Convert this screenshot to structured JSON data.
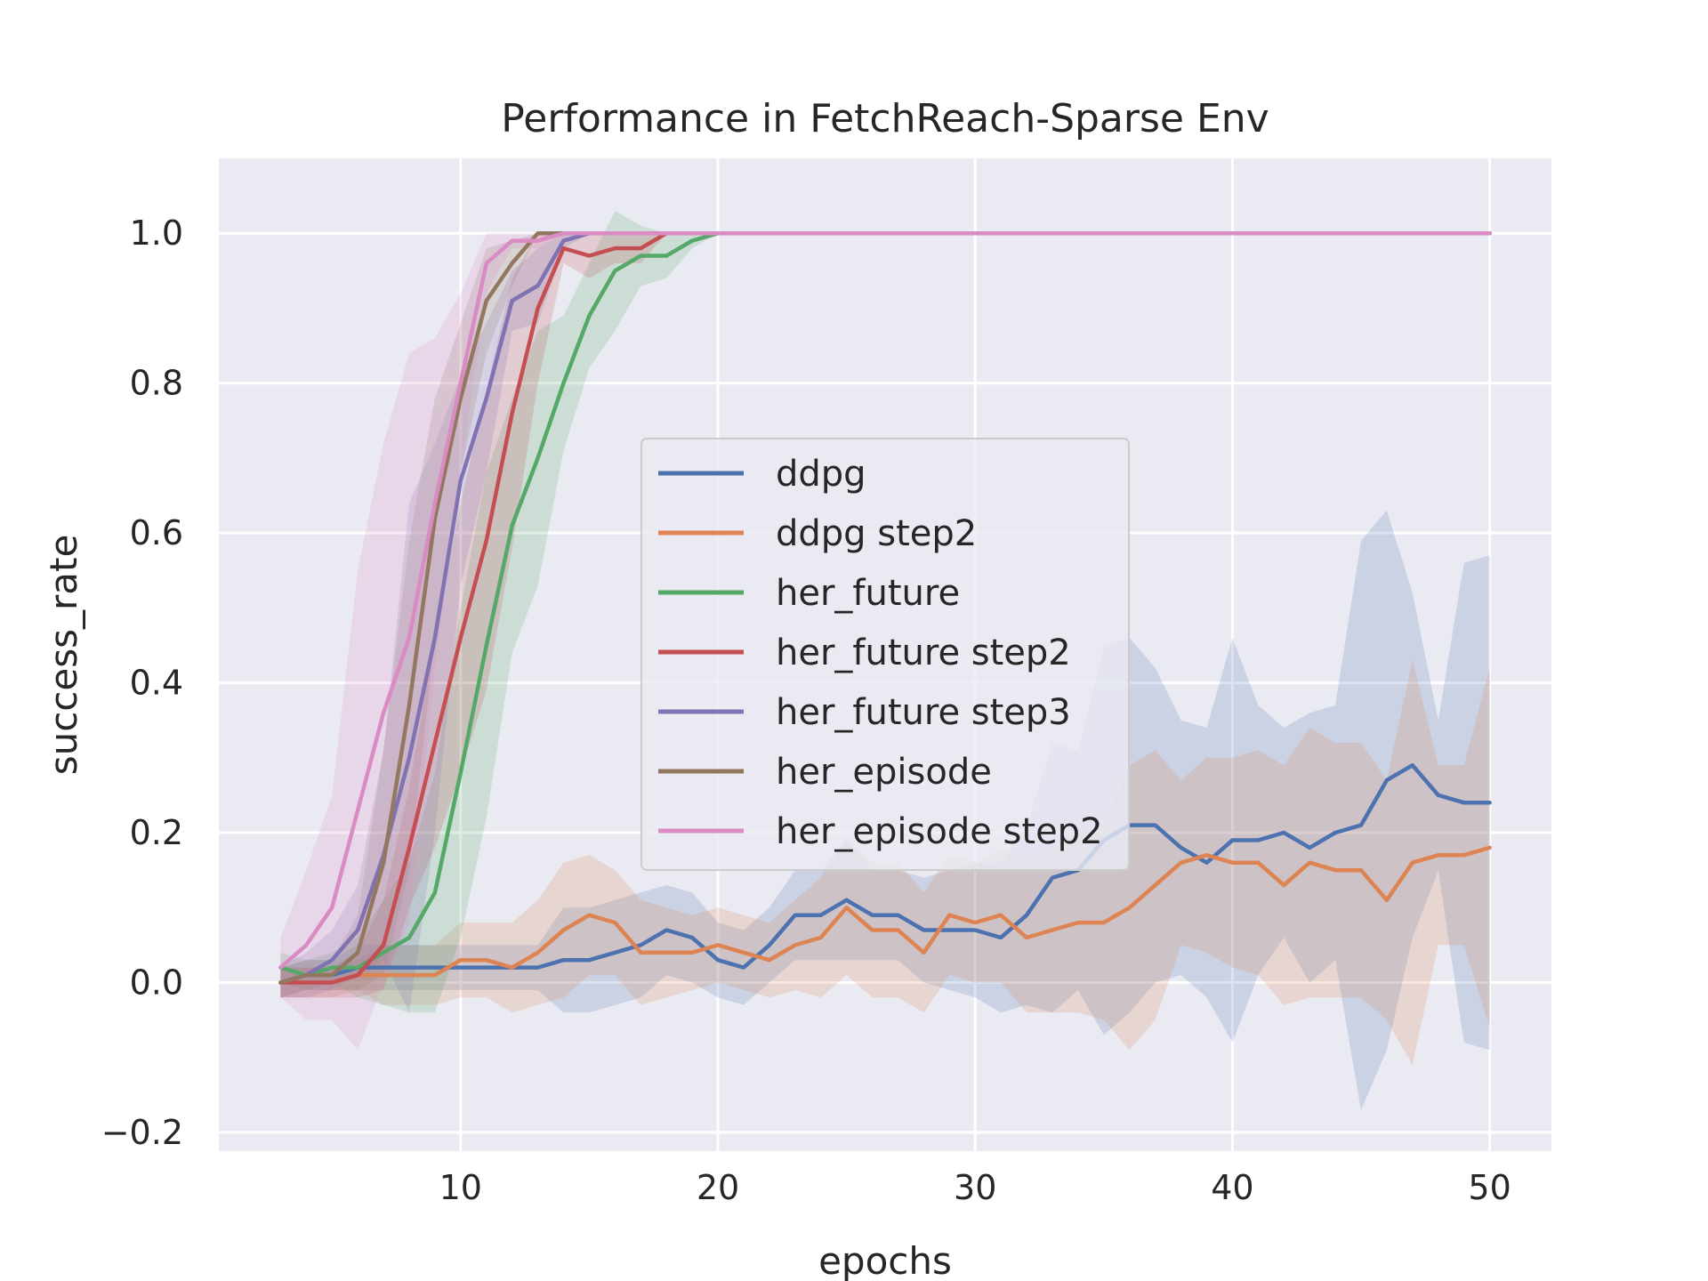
{
  "chart_data": {
    "type": "line",
    "title": "Performance in FetchReach-Sparse Env",
    "xlabel": "epochs",
    "ylabel": "success_rate",
    "xlim": [
      0.6,
      52.4
    ],
    "ylim": [
      -0.225,
      1.1
    ],
    "xticks": [
      10,
      20,
      30,
      40,
      50
    ],
    "yticks": [
      -0.2,
      0.0,
      0.2,
      0.4,
      0.6,
      0.8,
      1.0
    ],
    "xtick_labels": [
      "10",
      "20",
      "30",
      "40",
      "50"
    ],
    "ytick_labels": [
      "−0.2",
      "0.0",
      "0.2",
      "0.4",
      "0.6",
      "0.8",
      "1.0"
    ],
    "grid": true,
    "legend_position": "center",
    "background": "#eaeaf2",
    "series": [
      {
        "name": "ddpg",
        "color": "#4c72b0",
        "x": [
          3,
          4,
          5,
          6,
          7,
          8,
          9,
          10,
          11,
          12,
          13,
          14,
          15,
          16,
          17,
          18,
          19,
          20,
          21,
          22,
          23,
          24,
          25,
          26,
          27,
          28,
          29,
          30,
          31,
          32,
          33,
          34,
          35,
          36,
          37,
          38,
          39,
          40,
          41,
          42,
          43,
          44,
          45,
          46,
          47,
          48,
          49,
          50
        ],
        "y": [
          0.0,
          0.01,
          0.01,
          0.02,
          0.02,
          0.02,
          0.02,
          0.02,
          0.02,
          0.02,
          0.02,
          0.03,
          0.03,
          0.04,
          0.05,
          0.07,
          0.06,
          0.03,
          0.02,
          0.05,
          0.09,
          0.09,
          0.11,
          0.09,
          0.09,
          0.07,
          0.07,
          0.07,
          0.06,
          0.09,
          0.14,
          0.15,
          0.19,
          0.21,
          0.21,
          0.18,
          0.16,
          0.19,
          0.19,
          0.2,
          0.18,
          0.2,
          0.21,
          0.27,
          0.29,
          0.25,
          0.24,
          0.24
        ],
        "band": [
          0.02,
          0.02,
          0.02,
          0.03,
          0.03,
          0.03,
          0.03,
          0.03,
          0.03,
          0.03,
          0.03,
          0.07,
          0.07,
          0.07,
          0.07,
          0.06,
          0.06,
          0.05,
          0.05,
          0.05,
          0.06,
          0.06,
          0.08,
          0.06,
          0.06,
          0.07,
          0.08,
          0.09,
          0.1,
          0.12,
          0.18,
          0.16,
          0.26,
          0.25,
          0.21,
          0.17,
          0.18,
          0.27,
          0.18,
          0.14,
          0.18,
          0.17,
          0.38,
          0.36,
          0.23,
          0.1,
          0.32,
          0.33
        ]
      },
      {
        "name": "ddpg step2",
        "color": "#dd8452",
        "x": [
          3,
          4,
          5,
          6,
          7,
          8,
          9,
          10,
          11,
          12,
          13,
          14,
          15,
          16,
          17,
          18,
          19,
          20,
          21,
          22,
          23,
          24,
          25,
          26,
          27,
          28,
          29,
          30,
          31,
          32,
          33,
          34,
          35,
          36,
          37,
          38,
          39,
          40,
          41,
          42,
          43,
          44,
          45,
          46,
          47,
          48,
          49,
          50
        ],
        "y": [
          0.0,
          0.0,
          0.0,
          0.01,
          0.01,
          0.01,
          0.01,
          0.03,
          0.03,
          0.02,
          0.04,
          0.07,
          0.09,
          0.08,
          0.04,
          0.04,
          0.04,
          0.05,
          0.04,
          0.03,
          0.05,
          0.06,
          0.1,
          0.07,
          0.07,
          0.04,
          0.09,
          0.08,
          0.09,
          0.06,
          0.07,
          0.08,
          0.08,
          0.1,
          0.13,
          0.16,
          0.17,
          0.16,
          0.16,
          0.13,
          0.16,
          0.15,
          0.15,
          0.11,
          0.16,
          0.17,
          0.17,
          0.18
        ],
        "band": [
          0.02,
          0.02,
          0.02,
          0.02,
          0.04,
          0.04,
          0.04,
          0.05,
          0.05,
          0.06,
          0.07,
          0.09,
          0.08,
          0.07,
          0.07,
          0.06,
          0.05,
          0.05,
          0.05,
          0.05,
          0.06,
          0.08,
          0.09,
          0.09,
          0.09,
          0.08,
          0.08,
          0.08,
          0.09,
          0.1,
          0.11,
          0.12,
          0.13,
          0.19,
          0.18,
          0.11,
          0.13,
          0.14,
          0.15,
          0.16,
          0.18,
          0.17,
          0.17,
          0.16,
          0.27,
          0.12,
          0.12,
          0.24
        ]
      },
      {
        "name": "her_future",
        "color": "#55a868",
        "x": [
          3,
          4,
          5,
          6,
          7,
          8,
          9,
          10,
          11,
          12,
          13,
          14,
          15,
          16,
          17,
          18,
          19,
          20,
          21,
          22,
          23,
          24,
          25,
          26,
          27,
          28,
          29,
          30,
          31,
          32,
          33,
          34,
          35,
          36,
          37,
          38,
          39,
          40,
          41,
          42,
          43,
          44,
          45,
          46,
          47,
          48,
          49,
          50
        ],
        "y": [
          0.02,
          0.01,
          0.02,
          0.02,
          0.04,
          0.06,
          0.12,
          0.28,
          0.45,
          0.61,
          0.7,
          0.8,
          0.89,
          0.95,
          0.97,
          0.97,
          0.99,
          1.0,
          1.0,
          1.0,
          1.0,
          1.0,
          1.0,
          1.0,
          1.0,
          1.0,
          1.0,
          1.0,
          1.0,
          1.0,
          1.0,
          1.0,
          1.0,
          1.0,
          1.0,
          1.0,
          1.0,
          1.0,
          1.0,
          1.0,
          1.0,
          1.0,
          1.0,
          1.0,
          1.0,
          1.0,
          1.0,
          1.0
        ],
        "band": [
          0.02,
          0.02,
          0.02,
          0.04,
          0.07,
          0.1,
          0.16,
          0.22,
          0.23,
          0.17,
          0.17,
          0.09,
          0.07,
          0.08,
          0.04,
          0.03,
          0.01,
          0.0,
          0.0,
          0.0,
          0.0,
          0.0,
          0.0,
          0.0,
          0.0,
          0.0,
          0.0,
          0.0,
          0.0,
          0.0,
          0.0,
          0.0,
          0.0,
          0.0,
          0.0,
          0.0,
          0.0,
          0.0,
          0.0,
          0.0,
          0.0,
          0.0,
          0.0,
          0.0,
          0.0,
          0.0,
          0.0,
          0.0
        ]
      },
      {
        "name": "her_future step2",
        "color": "#c44e52",
        "x": [
          3,
          4,
          5,
          6,
          7,
          8,
          9,
          10,
          11,
          12,
          13,
          14,
          15,
          16,
          17,
          18,
          19,
          20,
          21,
          22,
          23,
          24,
          25,
          26,
          27,
          28,
          29,
          30,
          31,
          32,
          33,
          34,
          35,
          36,
          37,
          38,
          39,
          40,
          41,
          42,
          43,
          44,
          45,
          46,
          47,
          48,
          49,
          50
        ],
        "y": [
          0.0,
          0.0,
          0.0,
          0.01,
          0.05,
          0.18,
          0.32,
          0.46,
          0.59,
          0.76,
          0.9,
          0.98,
          0.97,
          0.98,
          0.98,
          1.0,
          1.0,
          1.0,
          1.0,
          1.0,
          1.0,
          1.0,
          1.0,
          1.0,
          1.0,
          1.0,
          1.0,
          1.0,
          1.0,
          1.0,
          1.0,
          1.0,
          1.0,
          1.0,
          1.0,
          1.0,
          1.0,
          1.0,
          1.0,
          1.0,
          1.0,
          1.0,
          1.0,
          1.0,
          1.0,
          1.0,
          1.0,
          1.0
        ],
        "band": [
          0.02,
          0.02,
          0.02,
          0.03,
          0.06,
          0.08,
          0.14,
          0.18,
          0.2,
          0.18,
          0.1,
          0.02,
          0.03,
          0.02,
          0.02,
          0.0,
          0.0,
          0.0,
          0.0,
          0.0,
          0.0,
          0.0,
          0.0,
          0.0,
          0.0,
          0.0,
          0.0,
          0.0,
          0.0,
          0.0,
          0.0,
          0.0,
          0.0,
          0.0,
          0.0,
          0.0,
          0.0,
          0.0,
          0.0,
          0.0,
          0.0,
          0.0,
          0.0,
          0.0,
          0.0,
          0.0,
          0.0,
          0.0
        ]
      },
      {
        "name": "her_future step3",
        "color": "#8172b3",
        "x": [
          3,
          4,
          5,
          6,
          7,
          8,
          9,
          10,
          11,
          12,
          13,
          14,
          15,
          16,
          17,
          18,
          19,
          20,
          21,
          22,
          23,
          24,
          25,
          26,
          27,
          28,
          29,
          30,
          31,
          32,
          33,
          34,
          35,
          36,
          37,
          38,
          39,
          40,
          41,
          42,
          43,
          44,
          45,
          46,
          47,
          48,
          49,
          50
        ],
        "y": [
          0.0,
          0.01,
          0.03,
          0.07,
          0.17,
          0.3,
          0.46,
          0.67,
          0.78,
          0.91,
          0.93,
          0.99,
          1.0,
          1.0,
          1.0,
          1.0,
          1.0,
          1.0,
          1.0,
          1.0,
          1.0,
          1.0,
          1.0,
          1.0,
          1.0,
          1.0,
          1.0,
          1.0,
          1.0,
          1.0,
          1.0,
          1.0,
          1.0,
          1.0,
          1.0,
          1.0,
          1.0,
          1.0,
          1.0,
          1.0,
          1.0,
          1.0,
          1.0,
          1.0,
          1.0,
          1.0,
          1.0,
          1.0
        ],
        "band": [
          0.02,
          0.03,
          0.04,
          0.06,
          0.14,
          0.34,
          0.26,
          0.14,
          0.1,
          0.04,
          0.05,
          0.01,
          0.0,
          0.0,
          0.0,
          0.0,
          0.0,
          0.0,
          0.0,
          0.0,
          0.0,
          0.0,
          0.0,
          0.0,
          0.0,
          0.0,
          0.0,
          0.0,
          0.0,
          0.0,
          0.0,
          0.0,
          0.0,
          0.0,
          0.0,
          0.0,
          0.0,
          0.0,
          0.0,
          0.0,
          0.0,
          0.0,
          0.0,
          0.0,
          0.0,
          0.0,
          0.0,
          0.0
        ]
      },
      {
        "name": "her_episode",
        "color": "#937860",
        "x": [
          3,
          4,
          5,
          6,
          7,
          8,
          9,
          10,
          11,
          12,
          13,
          14,
          15,
          16,
          17,
          18,
          19,
          20,
          21,
          22,
          23,
          24,
          25,
          26,
          27,
          28,
          29,
          30,
          31,
          32,
          33,
          34,
          35,
          36,
          37,
          38,
          39,
          40,
          41,
          42,
          43,
          44,
          45,
          46,
          47,
          48,
          49,
          50
        ],
        "y": [
          0.0,
          0.01,
          0.01,
          0.04,
          0.16,
          0.37,
          0.62,
          0.78,
          0.91,
          0.96,
          1.0,
          1.0,
          1.0,
          1.0,
          1.0,
          1.0,
          1.0,
          1.0,
          1.0,
          1.0,
          1.0,
          1.0,
          1.0,
          1.0,
          1.0,
          1.0,
          1.0,
          1.0,
          1.0,
          1.0,
          1.0,
          1.0,
          1.0,
          1.0,
          1.0,
          1.0,
          1.0,
          1.0,
          1.0,
          1.0,
          1.0,
          1.0,
          1.0,
          1.0,
          1.0,
          1.0,
          1.0,
          1.0
        ],
        "band": [
          0.02,
          0.02,
          0.02,
          0.05,
          0.15,
          0.22,
          0.16,
          0.1,
          0.07,
          0.03,
          0.0,
          0.0,
          0.0,
          0.0,
          0.0,
          0.0,
          0.0,
          0.0,
          0.0,
          0.0,
          0.0,
          0.0,
          0.0,
          0.0,
          0.0,
          0.0,
          0.0,
          0.0,
          0.0,
          0.0,
          0.0,
          0.0,
          0.0,
          0.0,
          0.0,
          0.0,
          0.0,
          0.0,
          0.0,
          0.0,
          0.0,
          0.0,
          0.0,
          0.0,
          0.0,
          0.0,
          0.0,
          0.0
        ]
      },
      {
        "name": "her_episode step2",
        "color": "#da8bc3",
        "x": [
          3,
          4,
          5,
          6,
          7,
          8,
          9,
          10,
          11,
          12,
          13,
          14,
          15,
          16,
          17,
          18,
          19,
          20,
          21,
          22,
          23,
          24,
          25,
          26,
          27,
          28,
          29,
          30,
          31,
          32,
          33,
          34,
          35,
          36,
          37,
          38,
          39,
          40,
          41,
          42,
          43,
          44,
          45,
          46,
          47,
          48,
          49,
          50
        ],
        "y": [
          0.02,
          0.05,
          0.1,
          0.23,
          0.36,
          0.46,
          0.64,
          0.8,
          0.96,
          0.99,
          0.99,
          1.0,
          1.0,
          1.0,
          1.0,
          1.0,
          1.0,
          1.0,
          1.0,
          1.0,
          1.0,
          1.0,
          1.0,
          1.0,
          1.0,
          1.0,
          1.0,
          1.0,
          1.0,
          1.0,
          1.0,
          1.0,
          1.0,
          1.0,
          1.0,
          1.0,
          1.0,
          1.0,
          1.0,
          1.0,
          1.0,
          1.0,
          1.0,
          1.0,
          1.0,
          1.0,
          1.0,
          1.0
        ],
        "band": [
          0.04,
          0.1,
          0.15,
          0.32,
          0.36,
          0.38,
          0.22,
          0.12,
          0.04,
          0.01,
          0.01,
          0.0,
          0.0,
          0.0,
          0.0,
          0.0,
          0.0,
          0.0,
          0.0,
          0.0,
          0.0,
          0.0,
          0.0,
          0.0,
          0.0,
          0.0,
          0.0,
          0.0,
          0.0,
          0.0,
          0.0,
          0.0,
          0.0,
          0.0,
          0.0,
          0.0,
          0.0,
          0.0,
          0.0,
          0.0,
          0.0,
          0.0,
          0.0,
          0.0,
          0.0,
          0.0,
          0.0,
          0.0
        ]
      }
    ]
  }
}
